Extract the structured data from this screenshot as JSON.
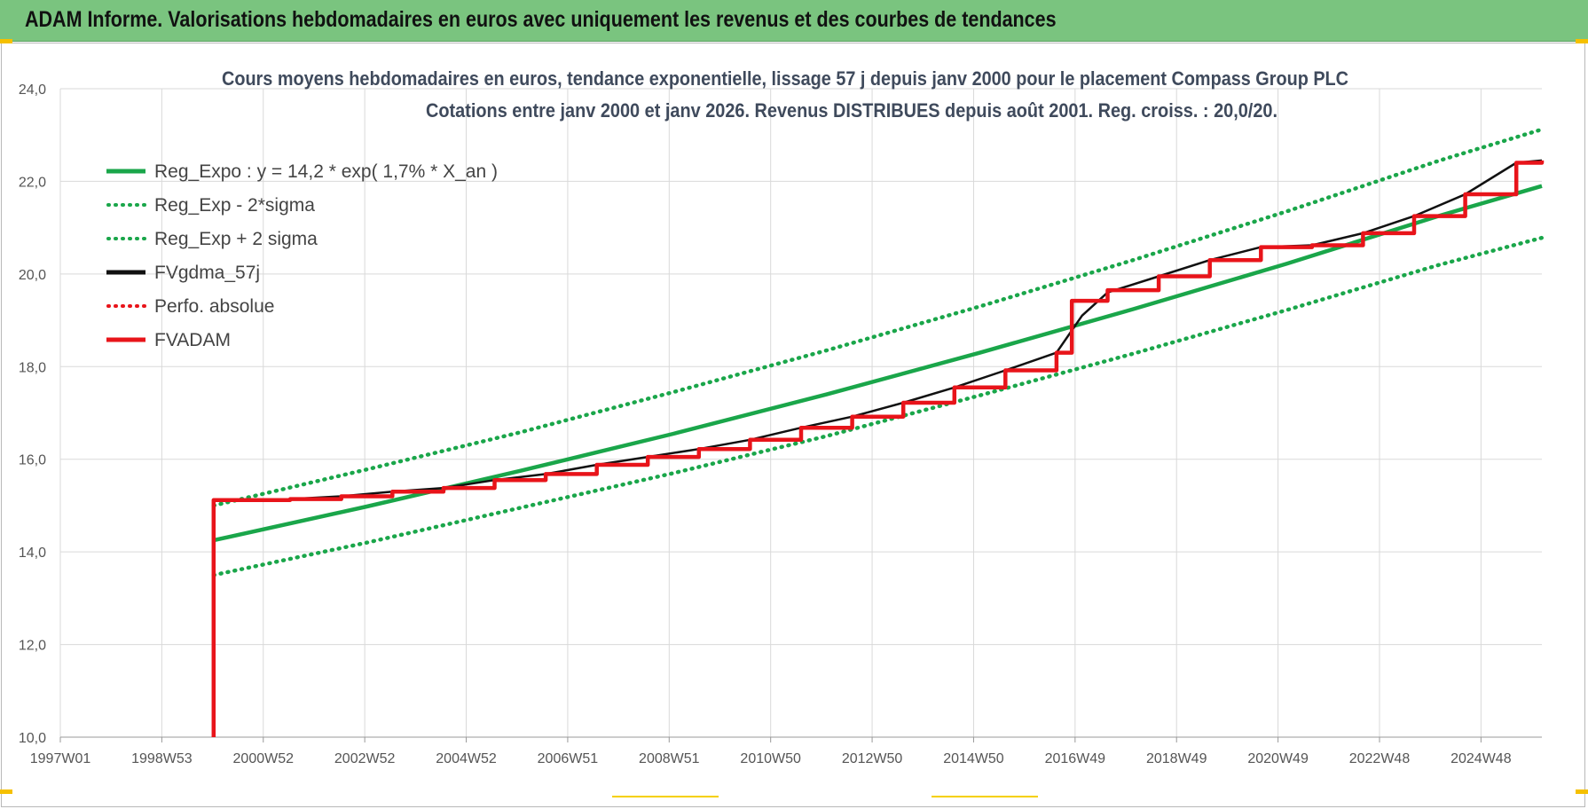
{
  "header": {
    "banner_title": "ADAM Informe. Valorisations hebdomadaires en euros avec uniquement les revenus et des courbes de tendances"
  },
  "colors": {
    "banner_bg": "#7ac47f",
    "green": "#1aa64a",
    "red": "#e8141a",
    "black": "#111111",
    "grid": "#d9d9d9"
  },
  "chart_data": {
    "type": "line",
    "title": "Cours moyens hebdomadaires en euros, tendance exponentielle, lissage 57 j depuis janv 2000 pour le placement Compass Group PLC",
    "subtitle": "Cotations entre janv 2000 et janv 2026. Revenus DISTRIBUES depuis août 2001. Reg. croiss. : 20,0/20.",
    "xlabel": "",
    "ylabel": "",
    "ylim": [
      10,
      24
    ],
    "y_ticks": [
      "10,0",
      "12,0",
      "14,0",
      "16,0",
      "18,0",
      "20,0",
      "22,0",
      "24,0"
    ],
    "x_ticks": [
      "1997W01",
      "1998W53",
      "2000W52",
      "2002W52",
      "2004W52",
      "2006W51",
      "2008W51",
      "2010W50",
      "2012W50",
      "2014W50",
      "2016W49",
      "2018W49",
      "2020W49",
      "2022W48",
      "2024W48"
    ],
    "xlim": [
      1997.0,
      2026.0
    ],
    "grid": true,
    "legend_position": "top-left",
    "series": [
      {
        "name": "Reg_Expo : y = 14,2 * exp( 1,7% *  X_an )",
        "style": "solid",
        "color": "#1aa64a",
        "x": [
          2000.0,
          2003.0,
          2006.0,
          2009.0,
          2012.0,
          2015.0,
          2018.0,
          2021.0,
          2024.0,
          2026.0
        ],
        "y": [
          14.25,
          14.98,
          15.75,
          16.55,
          17.4,
          18.3,
          19.24,
          20.22,
          21.26,
          21.9
        ]
      },
      {
        "name": "Reg_Exp - 2*sigma",
        "style": "dotted",
        "color": "#1aa64a",
        "x": [
          2000.0,
          2003.0,
          2006.0,
          2009.0,
          2012.0,
          2015.0,
          2018.0,
          2021.0,
          2024.0,
          2026.0
        ],
        "y": [
          13.5,
          14.2,
          14.95,
          15.7,
          16.5,
          17.38,
          18.28,
          19.22,
          20.2,
          20.78
        ]
      },
      {
        "name": "Reg_Exp + 2 sigma",
        "style": "dotted",
        "color": "#1aa64a",
        "x": [
          2000.0,
          2003.0,
          2006.0,
          2009.0,
          2012.0,
          2015.0,
          2018.0,
          2021.0,
          2024.0,
          2026.0
        ],
        "y": [
          15.0,
          15.78,
          16.58,
          17.45,
          18.35,
          19.3,
          20.3,
          21.35,
          22.45,
          23.12
        ]
      },
      {
        "name": "FVgdma_57j",
        "style": "solid",
        "color": "#111111",
        "x": [
          2000.0,
          2001.5,
          2002.5,
          2003.5,
          2004.5,
          2005.5,
          2006.5,
          2007.5,
          2008.5,
          2009.5,
          2010.5,
          2011.5,
          2012.5,
          2013.5,
          2014.5,
          2015.5,
          2016.5,
          2017.0,
          2017.5,
          2018.5,
          2019.5,
          2020.5,
          2021.5,
          2022.5,
          2023.5,
          2024.5,
          2025.5,
          2026.0
        ],
        "y": [
          15.12,
          15.14,
          15.2,
          15.3,
          15.38,
          15.55,
          15.68,
          15.88,
          16.05,
          16.22,
          16.42,
          16.68,
          16.92,
          17.22,
          17.55,
          17.92,
          18.3,
          19.1,
          19.6,
          19.95,
          20.3,
          20.58,
          20.62,
          20.88,
          21.25,
          21.72,
          22.4,
          22.45
        ]
      },
      {
        "name": "Perfo. absolue",
        "style": "dotted",
        "color": "#e8141a",
        "x": [
          2000.0,
          2026.0
        ],
        "y": [
          15.12,
          22.45
        ]
      },
      {
        "name": "FVADAM",
        "style": "step",
        "color": "#e8141a",
        "x": [
          2000.0,
          2000.0,
          2001.5,
          2002.5,
          2003.5,
          2004.5,
          2005.5,
          2006.5,
          2007.5,
          2008.5,
          2009.5,
          2010.5,
          2011.5,
          2012.5,
          2013.5,
          2014.5,
          2015.5,
          2016.5,
          2016.8,
          2017.5,
          2018.5,
          2019.5,
          2020.5,
          2021.5,
          2022.5,
          2023.5,
          2024.5,
          2025.5,
          2026.0
        ],
        "y": [
          10.0,
          15.12,
          15.14,
          15.2,
          15.3,
          15.38,
          15.55,
          15.68,
          15.88,
          16.05,
          16.22,
          16.42,
          16.68,
          16.92,
          17.22,
          17.55,
          17.92,
          18.3,
          19.42,
          19.65,
          19.95,
          20.3,
          20.58,
          20.62,
          20.88,
          21.25,
          21.72,
          22.4,
          22.45
        ]
      }
    ]
  }
}
